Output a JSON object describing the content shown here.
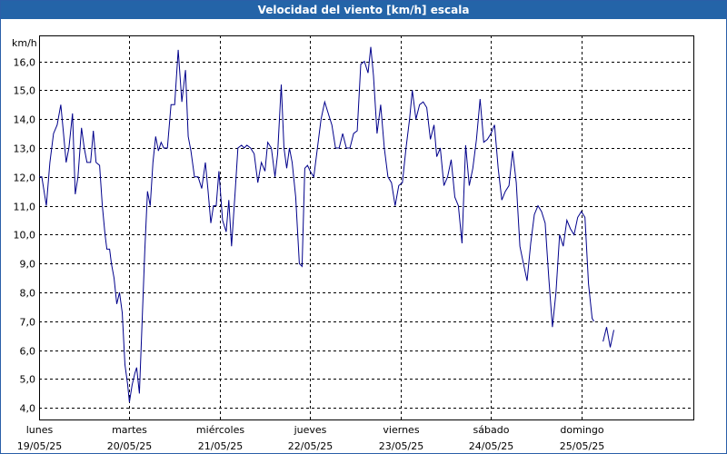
{
  "window": {
    "title": "Velocidad del viento [km/h] escala"
  },
  "chart_data": {
    "type": "line",
    "title": "Velocidad del viento [km/h] escala",
    "ylabel": "km/h",
    "xlabel": "",
    "ylim": [
      3.6,
      16.9
    ],
    "xlim": [
      0,
      7.24
    ],
    "grid": true,
    "yticks": [
      4.0,
      5.0,
      6.0,
      7.0,
      8.0,
      9.0,
      10.0,
      11.0,
      12.0,
      13.0,
      14.0,
      15.0,
      16.0
    ],
    "ytick_labels": [
      "4,0",
      "5,0",
      "6,0",
      "7,0",
      "8,0",
      "9,0",
      "10,0",
      "11,0",
      "12,0",
      "13,0",
      "14,0",
      "15,0",
      "16,0"
    ],
    "xticks": [
      {
        "day": "lunes",
        "date": "19/05/25",
        "x": 0
      },
      {
        "day": "martes",
        "date": "20/05/25",
        "x": 1
      },
      {
        "day": "miércoles",
        "date": "21/05/25",
        "x": 2
      },
      {
        "day": "jueves",
        "date": "22/05/25",
        "x": 3
      },
      {
        "day": "viernes",
        "date": "23/05/25",
        "x": 4
      },
      {
        "day": "sábado",
        "date": "24/05/25",
        "x": 5
      },
      {
        "day": "domingo",
        "date": "25/05/25",
        "x": 6
      }
    ],
    "series": [
      {
        "color": "#00008b",
        "segments": [
          [
            [
              0.0,
              12.0
            ],
            [
              0.03,
              12.0
            ],
            [
              0.08,
              11.0
            ],
            [
              0.12,
              12.5
            ],
            [
              0.16,
              13.5
            ],
            [
              0.2,
              13.8
            ],
            [
              0.24,
              14.5
            ],
            [
              0.27,
              13.5
            ],
            [
              0.3,
              12.5
            ],
            [
              0.33,
              13.0
            ],
            [
              0.37,
              14.2
            ],
            [
              0.4,
              11.4
            ],
            [
              0.43,
              12.0
            ],
            [
              0.47,
              13.7
            ],
            [
              0.5,
              13.0
            ],
            [
              0.53,
              12.5
            ],
            [
              0.57,
              12.5
            ],
            [
              0.6,
              13.6
            ],
            [
              0.63,
              12.5
            ],
            [
              0.67,
              12.4
            ],
            [
              0.7,
              11.0
            ],
            [
              0.73,
              10.0
            ],
            [
              0.75,
              9.5
            ],
            [
              0.78,
              9.5
            ],
            [
              0.8,
              9.0
            ],
            [
              0.83,
              8.5
            ],
            [
              0.86,
              7.6
            ],
            [
              0.89,
              8.0
            ],
            [
              0.92,
              7.3
            ],
            [
              0.95,
              5.5
            ],
            [
              0.98,
              4.8
            ],
            [
              1.0,
              4.2
            ],
            [
              1.03,
              4.8
            ],
            [
              1.06,
              5.2
            ],
            [
              1.08,
              5.4
            ],
            [
              1.11,
              4.5
            ],
            [
              1.14,
              7.0
            ],
            [
              1.17,
              9.5
            ],
            [
              1.2,
              11.5
            ],
            [
              1.23,
              11.0
            ],
            [
              1.26,
              12.5
            ],
            [
              1.29,
              13.4
            ],
            [
              1.32,
              12.9
            ],
            [
              1.35,
              13.2
            ],
            [
              1.38,
              13.0
            ],
            [
              1.42,
              13.0
            ],
            [
              1.46,
              14.5
            ],
            [
              1.5,
              14.5
            ],
            [
              1.54,
              16.4
            ],
            [
              1.58,
              14.6
            ],
            [
              1.62,
              15.7
            ],
            [
              1.65,
              13.4
            ],
            [
              1.68,
              12.9
            ],
            [
              1.72,
              12.0
            ],
            [
              1.76,
              12.0
            ],
            [
              1.8,
              11.6
            ],
            [
              1.84,
              12.5
            ],
            [
              1.87,
              11.5
            ],
            [
              1.9,
              10.4
            ],
            [
              1.93,
              11.0
            ],
            [
              1.96,
              11.0
            ],
            [
              1.99,
              12.2
            ],
            [
              2.03,
              10.5
            ],
            [
              2.07,
              10.1
            ],
            [
              2.1,
              11.2
            ],
            [
              2.13,
              9.6
            ],
            [
              2.17,
              11.5
            ],
            [
              2.2,
              13.0
            ],
            [
              2.24,
              13.1
            ],
            [
              2.27,
              13.0
            ],
            [
              2.3,
              13.1
            ],
            [
              2.34,
              13.0
            ],
            [
              2.38,
              12.8
            ],
            [
              2.42,
              11.8
            ],
            [
              2.46,
              12.5
            ],
            [
              2.5,
              12.2
            ],
            [
              2.53,
              13.2
            ],
            [
              2.57,
              13.0
            ],
            [
              2.61,
              12.0
            ],
            [
              2.64,
              12.8
            ],
            [
              2.68,
              15.2
            ],
            [
              2.71,
              13.0
            ],
            [
              2.74,
              12.3
            ],
            [
              2.77,
              13.0
            ],
            [
              2.8,
              12.5
            ],
            [
              2.84,
              11.3
            ],
            [
              2.88,
              9.0
            ],
            [
              2.91,
              8.9
            ],
            [
              2.94,
              12.3
            ],
            [
              2.97,
              12.4
            ],
            [
              3.0,
              12.2
            ],
            [
              3.04,
              12.0
            ],
            [
              3.08,
              13.0
            ],
            [
              3.12,
              14.0
            ],
            [
              3.16,
              14.6
            ],
            [
              3.2,
              14.2
            ],
            [
              3.24,
              13.8
            ],
            [
              3.28,
              13.0
            ],
            [
              3.32,
              13.0
            ],
            [
              3.36,
              13.5
            ],
            [
              3.4,
              13.0
            ],
            [
              3.44,
              13.0
            ],
            [
              3.48,
              13.5
            ],
            [
              3.52,
              13.6
            ],
            [
              3.56,
              15.9
            ],
            [
              3.6,
              16.0
            ],
            [
              3.64,
              15.6
            ],
            [
              3.67,
              16.5
            ],
            [
              3.7,
              15.5
            ],
            [
              3.74,
              13.5
            ],
            [
              3.78,
              14.5
            ],
            [
              3.82,
              13.0
            ],
            [
              3.86,
              12.0
            ],
            [
              3.9,
              11.8
            ],
            [
              3.94,
              11.0
            ],
            [
              3.98,
              11.7
            ],
            [
              4.02,
              11.8
            ],
            [
              4.06,
              13.0
            ],
            [
              4.1,
              14.0
            ],
            [
              4.13,
              15.0
            ],
            [
              4.17,
              14.0
            ],
            [
              4.21,
              14.5
            ],
            [
              4.25,
              14.6
            ],
            [
              4.29,
              14.4
            ],
            [
              4.33,
              13.3
            ],
            [
              4.37,
              13.8
            ],
            [
              4.4,
              12.7
            ],
            [
              4.44,
              13.0
            ],
            [
              4.48,
              11.7
            ],
            [
              4.52,
              12.0
            ],
            [
              4.56,
              12.6
            ],
            [
              4.6,
              11.3
            ],
            [
              4.64,
              11.0
            ],
            [
              4.68,
              9.7
            ],
            [
              4.72,
              13.1
            ],
            [
              4.76,
              11.7
            ],
            [
              4.8,
              12.3
            ],
            [
              4.84,
              13.3
            ],
            [
              4.88,
              14.7
            ],
            [
              4.92,
              13.2
            ],
            [
              4.96,
              13.3
            ],
            [
              5.0,
              13.5
            ],
            [
              5.04,
              13.8
            ],
            [
              5.08,
              12.3
            ],
            [
              5.12,
              11.2
            ],
            [
              5.16,
              11.5
            ],
            [
              5.2,
              11.7
            ],
            [
              5.24,
              12.9
            ],
            [
              5.28,
              11.8
            ],
            [
              5.32,
              9.6
            ],
            [
              5.36,
              9.0
            ],
            [
              5.4,
              8.4
            ],
            [
              5.44,
              9.7
            ],
            [
              5.48,
              10.7
            ],
            [
              5.52,
              11.0
            ],
            [
              5.56,
              10.8
            ],
            [
              5.6,
              10.4
            ],
            [
              5.64,
              8.5
            ],
            [
              5.68,
              6.8
            ],
            [
              5.72,
              8.0
            ],
            [
              5.76,
              10.0
            ],
            [
              5.8,
              9.6
            ],
            [
              5.84,
              10.5
            ],
            [
              5.88,
              10.2
            ],
            [
              5.92,
              10.0
            ],
            [
              5.96,
              10.6
            ],
            [
              6.0,
              10.8
            ],
            [
              6.04,
              10.6
            ],
            [
              6.08,
              8.3
            ],
            [
              6.12,
              7.1
            ],
            [
              6.14,
              7.0
            ]
          ],
          [
            [
              6.24,
              6.3
            ],
            [
              6.28,
              6.8
            ],
            [
              6.32,
              6.1
            ],
            [
              6.36,
              6.7
            ]
          ]
        ]
      }
    ]
  }
}
